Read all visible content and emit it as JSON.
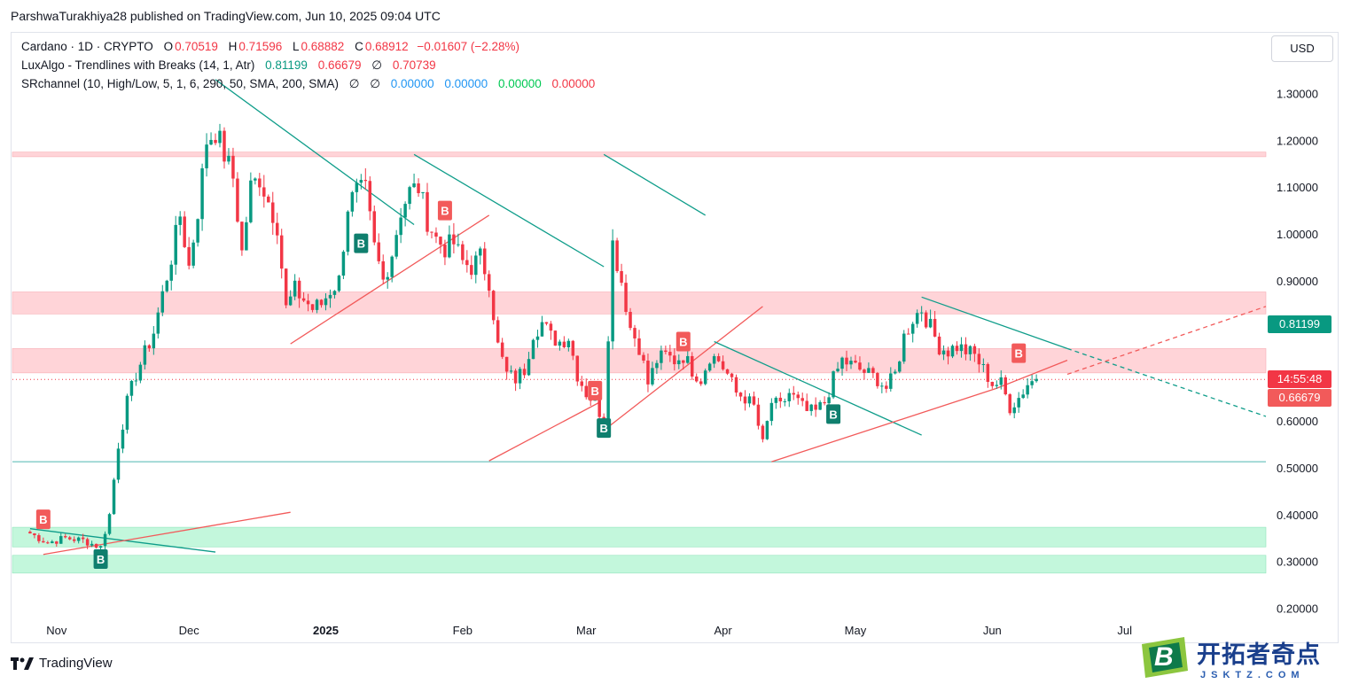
{
  "header": {
    "caption": "ParshwaTurakhiya28 published on TradingView.com, Jun 10, 2025 09:04 UTC"
  },
  "legend": {
    "symbol": "Cardano · 1D · CRYPTO",
    "o_label": "O",
    "o_value": "0.70519",
    "h_label": "H",
    "h_value": "0.71596",
    "l_label": "L",
    "l_value": "0.68882",
    "c_label": "C",
    "c_value": "0.68912",
    "change": "−0.01607 (−2.28%)",
    "luxalgo_name": "LuxAlgo - Trendlines with Breaks (14, 1, Atr)",
    "luxalgo_v1": "0.81199",
    "luxalgo_v2": "0.66679",
    "luxalgo_empty": "∅",
    "luxalgo_v3": "0.70739",
    "sr_name": "SRchannel (10, High/Low, 5, 1, 6, 290, 50, SMA, 200, SMA)",
    "sr_empty1": "∅",
    "sr_empty2": "∅",
    "sr_v1": "0.00000",
    "sr_v2": "0.00000",
    "sr_v3": "0.00000",
    "sr_v4": "0.00000"
  },
  "currency": "USD",
  "price_tags": {
    "upper_trend": "0.81199",
    "countdown": "14:55:48",
    "lower_trend": "0.66679"
  },
  "brand": {
    "logo_text": "TradingView"
  },
  "watermark": {
    "main": "开拓者奇点",
    "sub": "JSKTZ.COM",
    "logo_letter": "B"
  },
  "colors": {
    "up": "#089981",
    "down": "#f23645",
    "resistance_zone": "#ffcdd2",
    "support_zone": "#b9f6d6",
    "trend_green": "#0f9d8a",
    "trend_red": "#f25a5a"
  },
  "chart_data": {
    "type": "candlestick",
    "y_axis_ticks": [
      "1.30000",
      "1.20000",
      "1.10000",
      "1.00000",
      "0.90000",
      "0.80000",
      "0.70000",
      "0.60000",
      "0.50000",
      "0.40000",
      "0.30000",
      "0.20000"
    ],
    "y_range": [
      0.18,
      1.43
    ],
    "x_axis_labels": [
      {
        "label": "Nov",
        "day": 6
      },
      {
        "label": "Dec",
        "day": 36
      },
      {
        "label": "2025",
        "day": 67
      },
      {
        "label": "Feb",
        "day": 98
      },
      {
        "label": "Mar",
        "day": 126
      },
      {
        "label": "Apr",
        "day": 157
      },
      {
        "label": "May",
        "day": 187
      },
      {
        "label": "Jun",
        "day": 218
      },
      {
        "label": "Jul",
        "day": 248
      }
    ],
    "zones": [
      {
        "kind": "resistance",
        "low": 1.165,
        "high": 1.175
      },
      {
        "kind": "resistance",
        "low": 0.829,
        "high": 0.876
      },
      {
        "kind": "resistance",
        "low": 0.703,
        "high": 0.755
      },
      {
        "kind": "support",
        "low": 0.331,
        "high": 0.373
      },
      {
        "kind": "support",
        "low": 0.275,
        "high": 0.313
      }
    ],
    "horizontal_lines": [
      {
        "kind": "support-line",
        "value": 0.513
      },
      {
        "kind": "current-price",
        "value": 0.6891
      }
    ],
    "trendlines": [
      {
        "color": "green",
        "points": [
          [
            0,
            0.37
          ],
          [
            42,
            0.32
          ]
        ]
      },
      {
        "color": "red",
        "points": [
          [
            3,
            0.315
          ],
          [
            59,
            0.405
          ]
        ]
      },
      {
        "color": "green",
        "points": [
          [
            42,
            1.33
          ],
          [
            87,
            1.02
          ]
        ]
      },
      {
        "color": "red",
        "points": [
          [
            59,
            0.765
          ],
          [
            104,
            1.04
          ]
        ]
      },
      {
        "color": "green",
        "points": [
          [
            87,
            1.17
          ],
          [
            130,
            0.93
          ]
        ]
      },
      {
        "color": "green",
        "points": [
          [
            130,
            1.17
          ],
          [
            153,
            1.04
          ]
        ]
      },
      {
        "color": "red",
        "points": [
          [
            104,
            0.515
          ],
          [
            129,
            0.64
          ]
        ]
      },
      {
        "color": "red",
        "points": [
          [
            130,
            0.58
          ],
          [
            166,
            0.845
          ]
        ]
      },
      {
        "color": "green",
        "points": [
          [
            155,
            0.77
          ],
          [
            202,
            0.57
          ]
        ]
      },
      {
        "color": "red",
        "points": [
          [
            168,
            0.513
          ],
          [
            219,
            0.67
          ]
        ]
      },
      {
        "color": "green",
        "points": [
          [
            202,
            0.865
          ],
          [
            235,
            0.755
          ]
        ]
      },
      {
        "color": "red",
        "points": [
          [
            219,
            0.67
          ],
          [
            235,
            0.73
          ]
        ]
      },
      {
        "color": "green-dash",
        "points": [
          [
            235,
            0.755
          ],
          [
            280,
            0.61
          ]
        ]
      },
      {
        "color": "red-dash",
        "points": [
          [
            235,
            0.7
          ],
          [
            280,
            0.845
          ]
        ]
      }
    ],
    "break_markers": [
      {
        "label": "B",
        "side": "buy",
        "day": 16,
        "price": 0.305
      },
      {
        "label": "B",
        "side": "sell",
        "day": 3,
        "price": 0.39
      },
      {
        "label": "B",
        "side": "buy",
        "day": 75,
        "price": 0.98
      },
      {
        "label": "B",
        "side": "sell",
        "day": 94,
        "price": 1.05
      },
      {
        "label": "B",
        "side": "sell",
        "day": 128,
        "price": 0.665
      },
      {
        "label": "B",
        "side": "buy",
        "day": 130,
        "price": 0.585
      },
      {
        "label": "B",
        "side": "sell",
        "day": 148,
        "price": 0.77
      },
      {
        "label": "B",
        "side": "buy",
        "day": 182,
        "price": 0.615
      },
      {
        "label": "B",
        "side": "sell",
        "day": 224,
        "price": 0.745
      }
    ],
    "anchor_points": [
      [
        0,
        0.36
      ],
      [
        4,
        0.34
      ],
      [
        8,
        0.35
      ],
      [
        12,
        0.345
      ],
      [
        16,
        0.33
      ],
      [
        18,
        0.4
      ],
      [
        20,
        0.55
      ],
      [
        22,
        0.64
      ],
      [
        24,
        0.7
      ],
      [
        28,
        0.79
      ],
      [
        32,
        0.95
      ],
      [
        34,
        1.04
      ],
      [
        36,
        0.93
      ],
      [
        38,
        1.05
      ],
      [
        40,
        1.2
      ],
      [
        42,
        1.22
      ],
      [
        44,
        1.17
      ],
      [
        46,
        1.12
      ],
      [
        48,
        0.96
      ],
      [
        50,
        1.1
      ],
      [
        52,
        1.12
      ],
      [
        54,
        1.07
      ],
      [
        56,
        1.02
      ],
      [
        58,
        0.84
      ],
      [
        60,
        0.88
      ],
      [
        62,
        0.86
      ],
      [
        64,
        0.84
      ],
      [
        66,
        0.85
      ],
      [
        68,
        0.88
      ],
      [
        70,
        0.9
      ],
      [
        72,
        1.06
      ],
      [
        74,
        1.09
      ],
      [
        76,
        1.09
      ],
      [
        78,
        0.97
      ],
      [
        80,
        0.9
      ],
      [
        82,
        0.96
      ],
      [
        84,
        1.05
      ],
      [
        86,
        1.09
      ],
      [
        88,
        1.1
      ],
      [
        90,
        1.03
      ],
      [
        92,
        0.99
      ],
      [
        94,
        0.97
      ],
      [
        96,
        0.98
      ],
      [
        98,
        0.94
      ],
      [
        100,
        0.93
      ],
      [
        102,
        0.95
      ],
      [
        104,
        0.9
      ],
      [
        106,
        0.76
      ],
      [
        108,
        0.7
      ],
      [
        110,
        0.69
      ],
      [
        112,
        0.71
      ],
      [
        114,
        0.79
      ],
      [
        116,
        0.81
      ],
      [
        118,
        0.78
      ],
      [
        120,
        0.77
      ],
      [
        122,
        0.78
      ],
      [
        124,
        0.7
      ],
      [
        126,
        0.66
      ],
      [
        128,
        0.64
      ],
      [
        130,
        0.6
      ],
      [
        132,
        0.98
      ],
      [
        134,
        0.9
      ],
      [
        136,
        0.8
      ],
      [
        138,
        0.76
      ],
      [
        140,
        0.68
      ],
      [
        142,
        0.73
      ],
      [
        144,
        0.74
      ],
      [
        146,
        0.73
      ],
      [
        148,
        0.74
      ],
      [
        150,
        0.71
      ],
      [
        152,
        0.69
      ],
      [
        154,
        0.74
      ],
      [
        156,
        0.73
      ],
      [
        158,
        0.7
      ],
      [
        160,
        0.66
      ],
      [
        162,
        0.65
      ],
      [
        164,
        0.63
      ],
      [
        166,
        0.55
      ],
      [
        168,
        0.64
      ],
      [
        170,
        0.63
      ],
      [
        172,
        0.66
      ],
      [
        174,
        0.64
      ],
      [
        176,
        0.62
      ],
      [
        178,
        0.62
      ],
      [
        180,
        0.64
      ],
      [
        182,
        0.69
      ],
      [
        184,
        0.73
      ],
      [
        186,
        0.72
      ],
      [
        188,
        0.71
      ],
      [
        190,
        0.7
      ],
      [
        192,
        0.69
      ],
      [
        194,
        0.67
      ],
      [
        196,
        0.7
      ],
      [
        198,
        0.78
      ],
      [
        200,
        0.82
      ],
      [
        202,
        0.84
      ],
      [
        204,
        0.8
      ],
      [
        206,
        0.76
      ],
      [
        208,
        0.75
      ],
      [
        210,
        0.76
      ],
      [
        212,
        0.75
      ],
      [
        214,
        0.74
      ],
      [
        216,
        0.71
      ],
      [
        218,
        0.68
      ],
      [
        220,
        0.68
      ],
      [
        222,
        0.63
      ],
      [
        224,
        0.65
      ],
      [
        226,
        0.68
      ],
      [
        228,
        0.69
      ]
    ]
  }
}
